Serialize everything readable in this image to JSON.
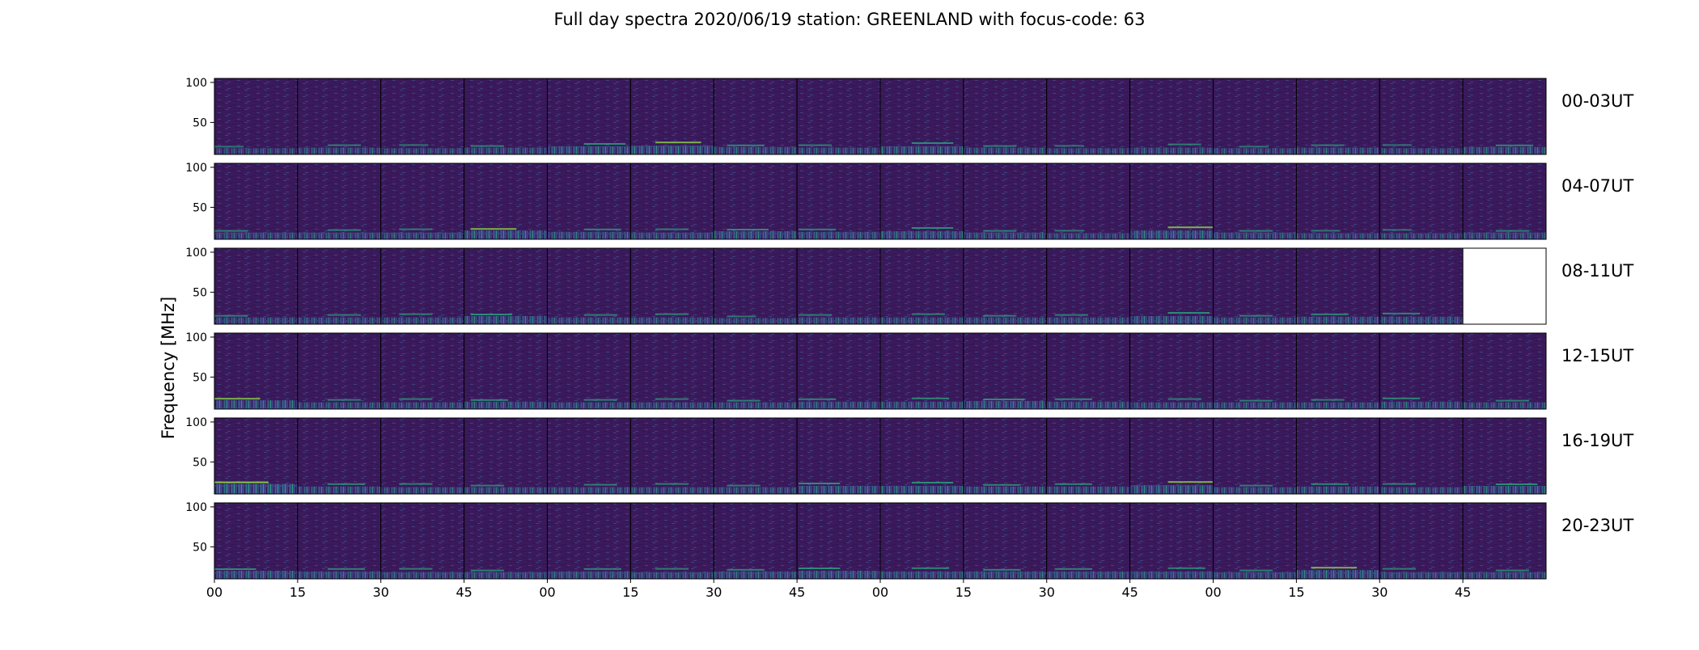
{
  "chart_data": {
    "type": "heatmap",
    "title": "Full day spectra 2020/06/19 station: GREENLAND with focus-code: 63",
    "ylabel": "Frequency [MHz]",
    "xlabel": "",
    "y_ticks": [
      100,
      50
    ],
    "ylim": [
      10,
      105
    ],
    "x_ticks": [
      "00",
      "15",
      "30",
      "45",
      "00",
      "15",
      "30",
      "45",
      "00",
      "15",
      "30",
      "45",
      "00",
      "15",
      "30",
      "45"
    ],
    "panels_per_row": 16,
    "colormap": {
      "background": "#3b1a5c",
      "dark": "#2f1450",
      "mid": "#3e4a89",
      "bright": "#2ab07f",
      "peak": "#8fd744"
    },
    "rows": [
      {
        "label": "00-03UT",
        "panels_with_data": 16,
        "bursts": [
          [
            0,
            0.2
          ],
          [
            1,
            0.3
          ],
          [
            2,
            0.2
          ],
          [
            3,
            0.3
          ],
          [
            4,
            0.5
          ],
          [
            5,
            0.6
          ],
          [
            6,
            0.4
          ],
          [
            7,
            0.3
          ],
          [
            8,
            0.5
          ],
          [
            9,
            0.3
          ],
          [
            10,
            0.2
          ],
          [
            11,
            0.3
          ],
          [
            12,
            0.2
          ],
          [
            13,
            0.3
          ],
          [
            14,
            0.2
          ],
          [
            15,
            0.4
          ]
        ]
      },
      {
        "label": "04-07UT",
        "panels_with_data": 16,
        "bursts": [
          [
            0,
            0.3
          ],
          [
            1,
            0.3
          ],
          [
            2,
            0.3
          ],
          [
            3,
            0.6
          ],
          [
            4,
            0.4
          ],
          [
            5,
            0.3
          ],
          [
            6,
            0.5
          ],
          [
            7,
            0.4
          ],
          [
            8,
            0.5
          ],
          [
            9,
            0.3
          ],
          [
            10,
            0.2
          ],
          [
            11,
            0.6
          ],
          [
            12,
            0.3
          ],
          [
            13,
            0.2
          ],
          [
            14,
            0.2
          ],
          [
            15,
            0.3
          ]
        ]
      },
      {
        "label": "08-11UT",
        "panels_with_data": 15,
        "bursts": [
          [
            0,
            0.3
          ],
          [
            1,
            0.3
          ],
          [
            2,
            0.3
          ],
          [
            3,
            0.5
          ],
          [
            4,
            0.3
          ],
          [
            5,
            0.3
          ],
          [
            6,
            0.2
          ],
          [
            7,
            0.3
          ],
          [
            8,
            0.3
          ],
          [
            9,
            0.3
          ],
          [
            10,
            0.3
          ],
          [
            11,
            0.5
          ],
          [
            12,
            0.3
          ],
          [
            13,
            0.4
          ],
          [
            14,
            0.4
          ]
        ]
      },
      {
        "label": "12-15UT",
        "panels_with_data": 16,
        "bursts": [
          [
            0,
            0.6
          ],
          [
            1,
            0.3
          ],
          [
            2,
            0.3
          ],
          [
            3,
            0.4
          ],
          [
            4,
            0.3
          ],
          [
            5,
            0.3
          ],
          [
            6,
            0.3
          ],
          [
            7,
            0.4
          ],
          [
            8,
            0.4
          ],
          [
            9,
            0.5
          ],
          [
            10,
            0.4
          ],
          [
            11,
            0.3
          ],
          [
            12,
            0.3
          ],
          [
            13,
            0.3
          ],
          [
            14,
            0.4
          ],
          [
            15,
            0.3
          ]
        ]
      },
      {
        "label": "16-19UT",
        "panels_with_data": 16,
        "bursts": [
          [
            0,
            0.8
          ],
          [
            1,
            0.4
          ],
          [
            2,
            0.3
          ],
          [
            3,
            0.3
          ],
          [
            4,
            0.3
          ],
          [
            5,
            0.3
          ],
          [
            6,
            0.3
          ],
          [
            7,
            0.5
          ],
          [
            8,
            0.5
          ],
          [
            9,
            0.4
          ],
          [
            10,
            0.4
          ],
          [
            11,
            0.6
          ],
          [
            12,
            0.3
          ],
          [
            13,
            0.4
          ],
          [
            14,
            0.3
          ],
          [
            15,
            0.5
          ]
        ]
      },
      {
        "label": "20-23UT",
        "panels_with_data": 16,
        "bursts": [
          [
            0,
            0.5
          ],
          [
            1,
            0.4
          ],
          [
            2,
            0.3
          ],
          [
            3,
            0.3
          ],
          [
            4,
            0.4
          ],
          [
            5,
            0.3
          ],
          [
            6,
            0.4
          ],
          [
            7,
            0.5
          ],
          [
            8,
            0.4
          ],
          [
            9,
            0.4
          ],
          [
            10,
            0.4
          ],
          [
            11,
            0.4
          ],
          [
            12,
            0.3
          ],
          [
            13,
            0.6
          ],
          [
            14,
            0.3
          ],
          [
            15,
            0.3
          ]
        ]
      }
    ]
  }
}
